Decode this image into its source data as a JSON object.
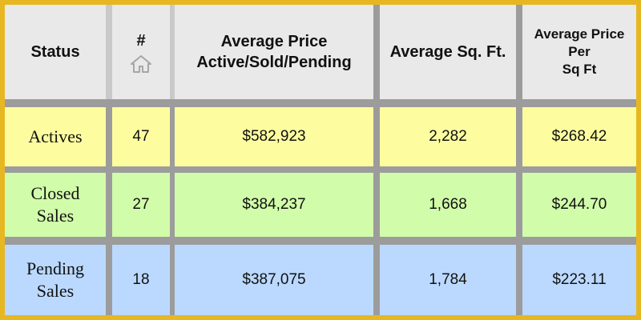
{
  "headers": {
    "status": "Status",
    "count": "#",
    "avg_price_line1": "Average Price",
    "avg_price_line2": "Active/Sold/Pending",
    "avg_sqft": "Average Sq. Ft.",
    "avg_price_per_line1": "Average Price",
    "avg_price_per_line2": "Per",
    "avg_price_per_line3": "Sq Ft",
    "count_icon": "house-icon"
  },
  "rows": [
    {
      "status_line1": "Actives",
      "status_line2": "",
      "count": "47",
      "avg_price": "$582,923",
      "avg_sqft": "2,282",
      "price_per_sqft": "$268.42",
      "color": "#fdfda0"
    },
    {
      "status_line1": "Closed",
      "status_line2": "Sales",
      "count": "27",
      "avg_price": "$384,237",
      "avg_sqft": "1,668",
      "price_per_sqft": "$244.70",
      "color": "#d1fcaa"
    },
    {
      "status_line1": "Pending",
      "status_line2": "Sales",
      "count": "18",
      "avg_price": "$387,075",
      "avg_sqft": "1,784",
      "price_per_sqft": "$223.11",
      "color": "#bbd9fe"
    }
  ],
  "colors": {
    "frame": "#e7b722",
    "header_bg": "#e9e9e9",
    "separator": "#9c9c9c"
  }
}
